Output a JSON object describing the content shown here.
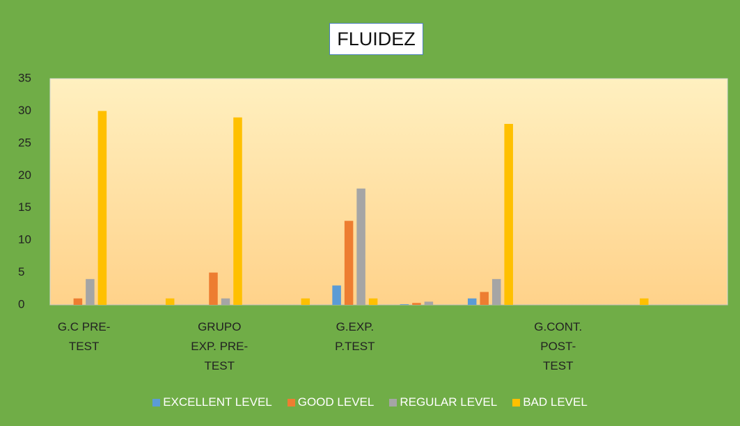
{
  "chart_data": {
    "type": "bar",
    "title": "FLUIDEZ",
    "categories": [
      "G.C PRE-TEST",
      null,
      "GRUPO EXP. PRE-TEST",
      null,
      "G.EXP. P.TEST",
      null,
      null,
      "G.CONT. POST-TEST",
      null,
      null
    ],
    "series": [
      {
        "name": "EXCELLENT LEVEL",
        "color": "#5b9bd5",
        "values": [
          0,
          0,
          0,
          0,
          3,
          0.1,
          1,
          0,
          0,
          0
        ]
      },
      {
        "name": "GOOD LEVEL",
        "color": "#ed7d31",
        "values": [
          1,
          0,
          5,
          0,
          13,
          0.3,
          2,
          0,
          0,
          0
        ]
      },
      {
        "name": "REGULAR LEVEL",
        "color": "#a5a5a5",
        "values": [
          4,
          0,
          1,
          0,
          18,
          0.5,
          4,
          0,
          0,
          0
        ]
      },
      {
        "name": "BAD LEVEL",
        "color": "#ffc000",
        "values": [
          30,
          1,
          29,
          1,
          1,
          0,
          28,
          0,
          1,
          0
        ]
      }
    ],
    "ylim": [
      0,
      35
    ],
    "yticks": [
      0,
      5,
      10,
      15,
      20,
      25,
      30,
      35
    ],
    "grid": false,
    "legend": "bottom"
  }
}
